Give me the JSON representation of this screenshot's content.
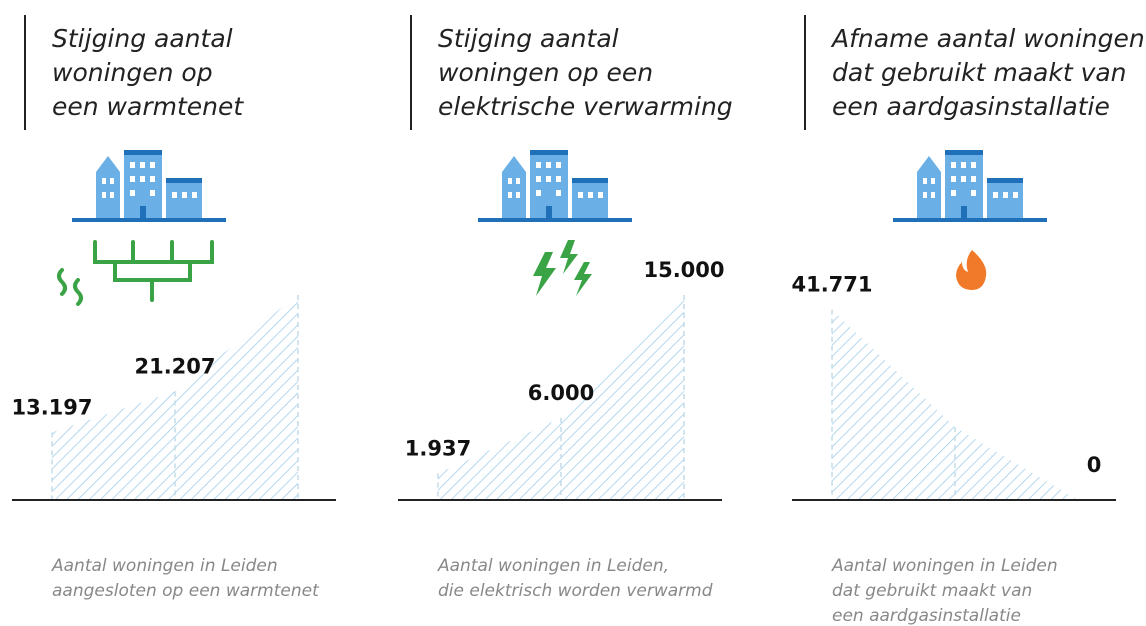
{
  "chart_data": [
    {
      "type": "area",
      "title": [
        "Stijging aantal",
        "woningen op",
        "een warmtenet"
      ],
      "categories": [
        null,
        null,
        null
      ],
      "values": [
        13197,
        21207,
        40000
      ],
      "value_labels": [
        "13.197",
        "21.207",
        null
      ],
      "ylim": [
        0,
        40000
      ],
      "color": "#8cc3e6",
      "caption": [
        "Aantal woningen in Leiden",
        "aangesloten op een warmtenet"
      ]
    },
    {
      "type": "area",
      "title": [
        "Stijging aantal",
        "woningen op een",
        "elektrische verwarming"
      ],
      "categories": [
        null,
        null,
        null
      ],
      "values": [
        1937,
        6000,
        15000
      ],
      "value_labels": [
        "1.937",
        "6.000",
        "15.000"
      ],
      "ylim": [
        0,
        15000
      ],
      "color": "#8cc3e6",
      "caption": [
        "Aantal woningen in Leiden,",
        "die elektrisch worden verwarmd"
      ]
    },
    {
      "type": "area",
      "title": [
        "Afname aantal woningen",
        "dat gebruikt maakt van",
        "een aardgasinstallatie"
      ],
      "categories": [
        null,
        null,
        null
      ],
      "values": [
        41771,
        16000,
        0
      ],
      "value_labels": [
        "41.771",
        null,
        "0"
      ],
      "ylim": [
        0,
        45000
      ],
      "color": "#8cc3e6",
      "caption": [
        "Aantal woningen in Leiden",
        "dat gebruikt maakt van",
        "een aardgasinstallatie"
      ]
    }
  ]
}
